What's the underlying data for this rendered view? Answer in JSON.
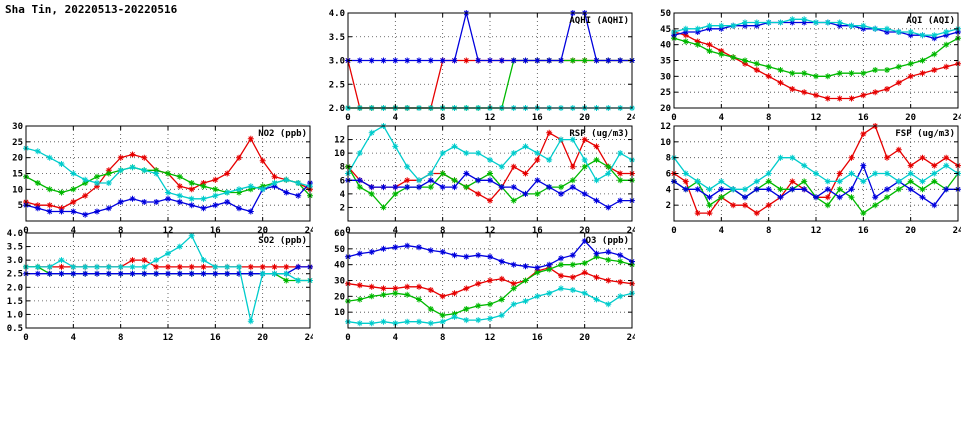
{
  "header": {
    "title": "Sha Tin, 20220513-20220516"
  },
  "chart_layout": {
    "xlim": [
      0,
      24
    ],
    "x_ticks": [
      0,
      4,
      8,
      12,
      16,
      20,
      24
    ],
    "x_hours": [
      0,
      1,
      2,
      3,
      4,
      5,
      6,
      7,
      8,
      9,
      10,
      11,
      12,
      13,
      14,
      15,
      16,
      17,
      18,
      19,
      20,
      21,
      22,
      23,
      24
    ],
    "grid": "dotted",
    "legend": "none"
  },
  "chart_data": [
    {
      "id": "aqhi",
      "type": "line",
      "title": "AQHI (AQHI)",
      "ylim": [
        2.0,
        4.0
      ],
      "y_ticks": [
        2.0,
        2.5,
        3.0,
        3.5,
        4.0
      ],
      "y_decimals": 1,
      "series": [
        {
          "name": "red",
          "color": "#e60000",
          "values": [
            3,
            2,
            2,
            2,
            2,
            2,
            2,
            2,
            3,
            3,
            3,
            3,
            3,
            3,
            3,
            3,
            3,
            3,
            3,
            3,
            3,
            3,
            3,
            3,
            3
          ]
        },
        {
          "name": "green",
          "color": "#00b800",
          "values": [
            2,
            2,
            2,
            2,
            2,
            2,
            2,
            2,
            2,
            2,
            2,
            2,
            2,
            2,
            3,
            3,
            3,
            3,
            3,
            3,
            3,
            3,
            3,
            3,
            3
          ]
        },
        {
          "name": "blue",
          "color": "#0000dd",
          "values": [
            3,
            3,
            3,
            3,
            3,
            3,
            3,
            3,
            3,
            3,
            4,
            3,
            3,
            3,
            3,
            3,
            3,
            3,
            3,
            4,
            4,
            3,
            3,
            3,
            3
          ]
        },
        {
          "name": "cyan",
          "color": "#00cccc",
          "values": [
            2,
            2,
            2,
            2,
            2,
            2,
            2,
            2,
            2,
            2,
            2,
            2,
            2,
            2,
            2,
            2,
            2,
            2,
            2,
            2,
            2,
            2,
            2,
            2,
            2
          ]
        }
      ]
    },
    {
      "id": "aqi",
      "type": "line",
      "title": "AQI (AQI)",
      "ylim": [
        20,
        50
      ],
      "y_ticks": [
        20,
        25,
        30,
        35,
        40,
        45,
        50
      ],
      "y_decimals": 0,
      "series": [
        {
          "name": "red",
          "color": "#e60000",
          "values": [
            44,
            43,
            41,
            40,
            38,
            36,
            34,
            32,
            30,
            28,
            26,
            25,
            24,
            23,
            23,
            23,
            24,
            25,
            26,
            28,
            30,
            31,
            32,
            33,
            34
          ]
        },
        {
          "name": "green",
          "color": "#00b800",
          "values": [
            42,
            41,
            40,
            38,
            37,
            36,
            35,
            34,
            33,
            32,
            31,
            31,
            30,
            30,
            31,
            31,
            31,
            32,
            32,
            33,
            34,
            35,
            37,
            40,
            42
          ]
        },
        {
          "name": "blue",
          "color": "#0000dd",
          "values": [
            43,
            44,
            44,
            45,
            45,
            46,
            46,
            46,
            47,
            47,
            47,
            47,
            47,
            47,
            46,
            46,
            45,
            45,
            44,
            44,
            43,
            43,
            42,
            43,
            44
          ]
        },
        {
          "name": "cyan",
          "color": "#00cccc",
          "values": [
            44,
            45,
            45,
            46,
            46,
            46,
            47,
            47,
            47,
            47,
            48,
            48,
            47,
            47,
            47,
            46,
            46,
            45,
            45,
            44,
            44,
            43,
            43,
            44,
            45
          ]
        }
      ]
    },
    {
      "id": "no2",
      "type": "line",
      "title": "NO2 (ppb)",
      "ylim": [
        0,
        30
      ],
      "y_ticks": [
        5,
        10,
        15,
        20,
        25,
        30
      ],
      "y_decimals": 0,
      "series": [
        {
          "name": "red",
          "color": "#e60000",
          "values": [
            6,
            5,
            5,
            4,
            6,
            8,
            11,
            16,
            20,
            21,
            20,
            16,
            15,
            11,
            10,
            12,
            13,
            15,
            20,
            26,
            19,
            14,
            13,
            12,
            10
          ]
        },
        {
          "name": "green",
          "color": "#00b800",
          "values": [
            14,
            12,
            10,
            9,
            10,
            12,
            14,
            15,
            16,
            17,
            16,
            16,
            15,
            14,
            12,
            11,
            10,
            9,
            9,
            10,
            11,
            12,
            13,
            12,
            8
          ]
        },
        {
          "name": "blue",
          "color": "#0000dd",
          "values": [
            5,
            4,
            3,
            3,
            3,
            2,
            3,
            4,
            6,
            7,
            6,
            6,
            7,
            6,
            5,
            4,
            5,
            6,
            4,
            3,
            10,
            11,
            9,
            8,
            12
          ]
        },
        {
          "name": "cyan",
          "color": "#00cccc",
          "values": [
            23,
            22,
            20,
            18,
            15,
            13,
            12,
            12,
            16,
            17,
            16,
            15,
            9,
            8,
            7,
            7,
            8,
            9,
            10,
            11,
            10,
            12,
            13,
            12,
            11
          ]
        }
      ]
    },
    {
      "id": "rsp",
      "type": "line",
      "title": "RSP (ug/m3)",
      "ylim": [
        0,
        14
      ],
      "y_ticks": [
        2,
        4,
        6,
        8,
        10,
        12
      ],
      "y_decimals": 0,
      "series": [
        {
          "name": "red",
          "color": "#e60000",
          "values": [
            8,
            6,
            5,
            5,
            5,
            6,
            6,
            7,
            7,
            6,
            5,
            4,
            3,
            5,
            8,
            7,
            9,
            13,
            12,
            8,
            12,
            11,
            8,
            7,
            7
          ]
        },
        {
          "name": "green",
          "color": "#00b800",
          "values": [
            8,
            5,
            4,
            2,
            4,
            5,
            5,
            5,
            7,
            6,
            5,
            6,
            7,
            5,
            3,
            4,
            4,
            5,
            5,
            6,
            8,
            9,
            8,
            6,
            6
          ]
        },
        {
          "name": "blue",
          "color": "#0000dd",
          "values": [
            6,
            6,
            5,
            5,
            5,
            5,
            5,
            6,
            5,
            5,
            7,
            6,
            6,
            5,
            5,
            4,
            6,
            5,
            4,
            5,
            4,
            3,
            2,
            3,
            3
          ]
        },
        {
          "name": "cyan",
          "color": "#00cccc",
          "values": [
            7,
            10,
            13,
            14,
            11,
            8,
            6,
            7,
            10,
            11,
            10,
            10,
            9,
            8,
            10,
            11,
            10,
            9,
            12,
            12,
            9,
            6,
            7,
            10,
            9
          ]
        }
      ]
    },
    {
      "id": "fsp",
      "type": "line",
      "title": "FSP (ug/m3)",
      "ylim": [
        0,
        12
      ],
      "y_ticks": [
        2,
        4,
        6,
        8,
        10,
        12
      ],
      "y_decimals": 0,
      "series": [
        {
          "name": "red",
          "color": "#e60000",
          "values": [
            6,
            5,
            1,
            1,
            3,
            2,
            2,
            1,
            2,
            3,
            5,
            4,
            3,
            3,
            6,
            8,
            11,
            12,
            8,
            9,
            7,
            8,
            7,
            8,
            7
          ]
        },
        {
          "name": "green",
          "color": "#00b800",
          "values": [
            5,
            4,
            5,
            2,
            3,
            4,
            3,
            4,
            5,
            4,
            4,
            5,
            3,
            2,
            4,
            3,
            1,
            2,
            3,
            4,
            5,
            4,
            5,
            4,
            6
          ]
        },
        {
          "name": "blue",
          "color": "#0000dd",
          "values": [
            5,
            4,
            4,
            3,
            4,
            4,
            3,
            4,
            4,
            3,
            4,
            4,
            3,
            4,
            3,
            4,
            7,
            3,
            4,
            5,
            4,
            3,
            2,
            4,
            4
          ]
        },
        {
          "name": "cyan",
          "color": "#00cccc",
          "values": [
            8,
            6,
            5,
            4,
            5,
            4,
            4,
            5,
            6,
            8,
            8,
            7,
            6,
            5,
            5,
            6,
            5,
            6,
            6,
            5,
            6,
            5,
            6,
            7,
            6
          ]
        }
      ]
    },
    {
      "id": "so2",
      "type": "line",
      "title": "SO2 (ppb)",
      "ylim": [
        0.5,
        4.0
      ],
      "y_ticks": [
        0.5,
        1.0,
        1.5,
        2.0,
        2.5,
        3.0,
        3.5,
        4.0
      ],
      "y_decimals": 1,
      "series": [
        {
          "name": "red",
          "color": "#e60000",
          "values": [
            2.75,
            2.75,
            2.75,
            2.75,
            2.75,
            2.75,
            2.75,
            2.75,
            2.75,
            3,
            3,
            2.75,
            2.75,
            2.75,
            2.75,
            2.75,
            2.75,
            2.75,
            2.75,
            2.75,
            2.75,
            2.75,
            2.75,
            2.75,
            2.75
          ]
        },
        {
          "name": "green",
          "color": "#00b800",
          "values": [
            2.75,
            2.75,
            2.5,
            2.5,
            2.5,
            2.5,
            2.5,
            2.5,
            2.5,
            2.5,
            2.5,
            2.5,
            2.5,
            2.5,
            2.5,
            2.5,
            2.5,
            2.5,
            2.5,
            2.5,
            2.5,
            2.5,
            2.25,
            2.25,
            2.25
          ]
        },
        {
          "name": "blue",
          "color": "#0000dd",
          "values": [
            2.5,
            2.5,
            2.5,
            2.5,
            2.5,
            2.5,
            2.5,
            2.5,
            2.5,
            2.5,
            2.5,
            2.5,
            2.5,
            2.5,
            2.5,
            2.5,
            2.5,
            2.5,
            2.5,
            2.5,
            2.5,
            2.5,
            2.5,
            2.75,
            2.75
          ]
        },
        {
          "name": "cyan",
          "color": "#00cccc",
          "values": [
            2.75,
            2.75,
            2.75,
            3,
            2.75,
            2.75,
            2.75,
            2.75,
            2.75,
            2.75,
            2.75,
            3,
            3.25,
            3.5,
            3.9,
            3,
            2.75,
            2.75,
            2.75,
            0.75,
            2.5,
            2.5,
            2.5,
            2.25,
            2.25
          ]
        }
      ]
    },
    {
      "id": "o3",
      "type": "line",
      "title": "O3 (ppb)",
      "ylim": [
        0,
        60
      ],
      "y_ticks": [
        10,
        20,
        30,
        40,
        50,
        60
      ],
      "y_decimals": 0,
      "series": [
        {
          "name": "red",
          "color": "#e60000",
          "values": [
            28,
            27,
            26,
            25,
            25,
            26,
            26,
            24,
            20,
            22,
            25,
            28,
            30,
            31,
            28,
            30,
            36,
            38,
            33,
            32,
            35,
            32,
            30,
            29,
            28
          ]
        },
        {
          "name": "green",
          "color": "#00b800",
          "values": [
            17,
            18,
            20,
            21,
            22,
            21,
            18,
            12,
            8,
            9,
            12,
            14,
            15,
            18,
            25,
            30,
            35,
            37,
            40,
            40,
            41,
            45,
            43,
            42,
            40
          ]
        },
        {
          "name": "blue",
          "color": "#0000dd",
          "values": [
            45,
            47,
            48,
            50,
            51,
            52,
            51,
            49,
            48,
            46,
            45,
            46,
            45,
            42,
            40,
            39,
            38,
            40,
            44,
            46,
            55,
            47,
            48,
            46,
            42
          ]
        },
        {
          "name": "cyan",
          "color": "#00cccc",
          "values": [
            4,
            3,
            3,
            4,
            3,
            4,
            4,
            3,
            4,
            7,
            5,
            5,
            6,
            8,
            15,
            17,
            20,
            22,
            25,
            24,
            22,
            18,
            15,
            20,
            22
          ]
        }
      ]
    }
  ]
}
